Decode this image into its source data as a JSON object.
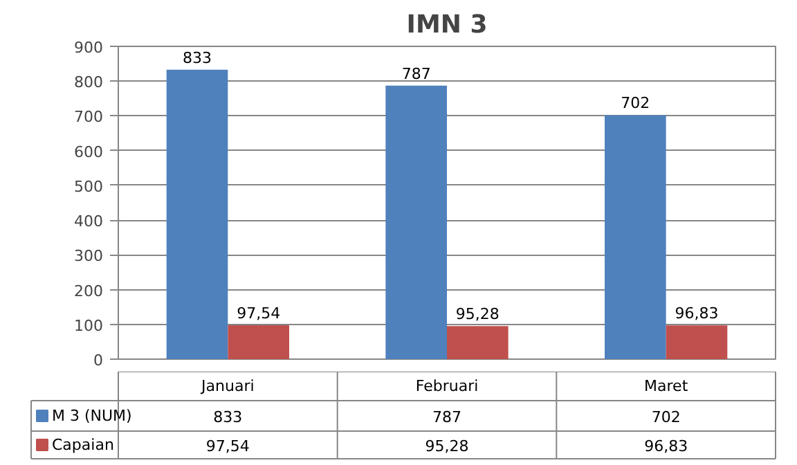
{
  "chart_data": {
    "type": "bar",
    "title": "IMN 3",
    "categories": [
      "Januari",
      "Februari",
      "Maret"
    ],
    "series": [
      {
        "name": "M 3 (NUM)",
        "color": "#4f81bd",
        "values": [
          833,
          787,
          702
        ],
        "value_labels": [
          "833",
          "787",
          "702"
        ]
      },
      {
        "name": "Capaian",
        "color": "#c0504d",
        "values": [
          97.54,
          95.28,
          96.83
        ],
        "value_labels": [
          "97,54",
          "95,28",
          "96,83"
        ]
      }
    ],
    "ylim": [
      0,
      900
    ],
    "yticks": [
      0,
      100,
      200,
      300,
      400,
      500,
      600,
      700,
      800,
      900
    ],
    "grid": "y",
    "legend": "bottom"
  }
}
